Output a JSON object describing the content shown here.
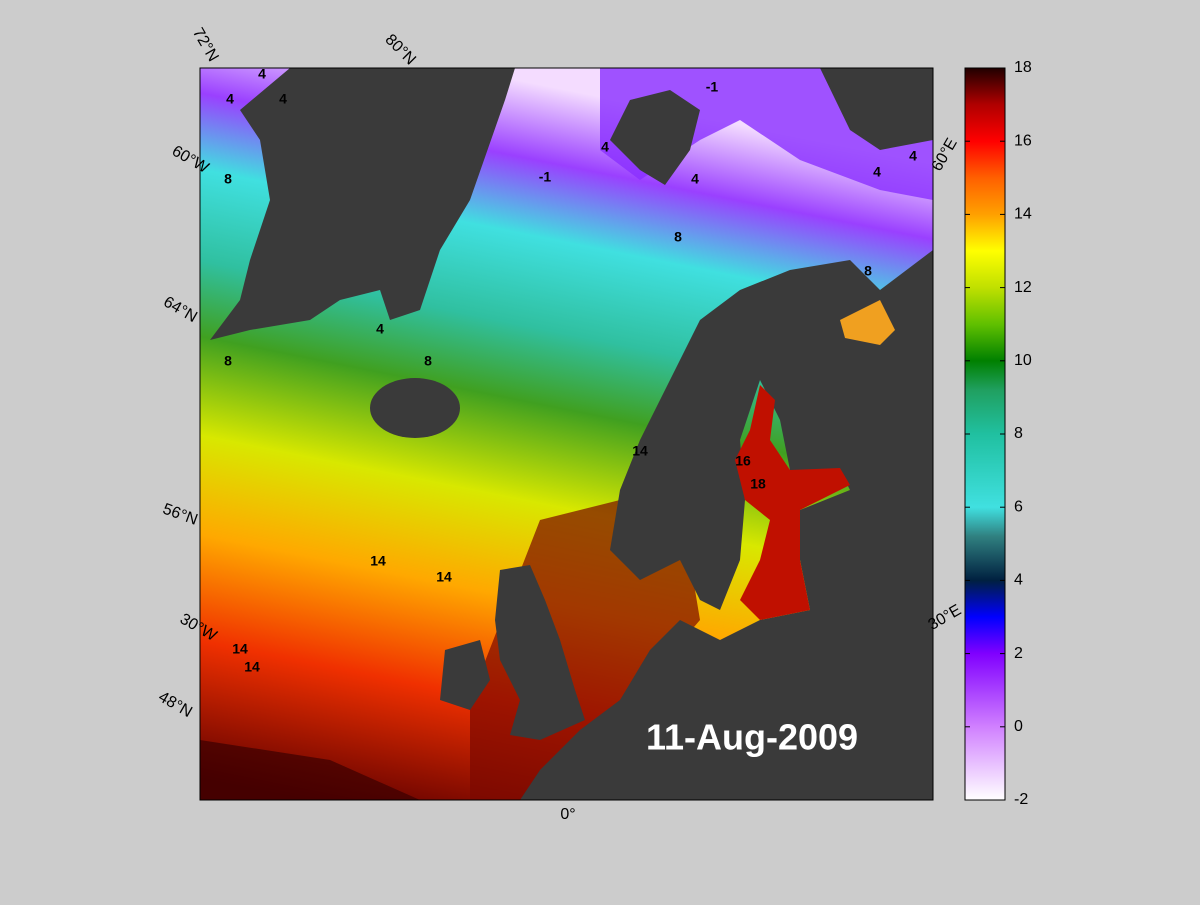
{
  "map": {
    "date": "11-Aug-2009",
    "graticule_labels": [
      "72°N",
      "80°N",
      "60°W",
      "64°N",
      "56°N",
      "30°W",
      "48°N",
      "0°",
      "30°E",
      "60°E"
    ],
    "contour_labels": [
      "4",
      "4",
      "4",
      "8",
      "-1",
      "4",
      "-1",
      "4",
      "4",
      "4",
      "8",
      "8",
      "8",
      "8",
      "4",
      "14",
      "14",
      "14",
      "14",
      "14",
      "16",
      "18"
    ]
  },
  "colorbar": {
    "lim": [
      -2,
      18
    ],
    "ticks": [
      -2,
      0,
      2,
      4,
      6,
      8,
      10,
      12,
      14,
      16,
      18
    ]
  }
}
